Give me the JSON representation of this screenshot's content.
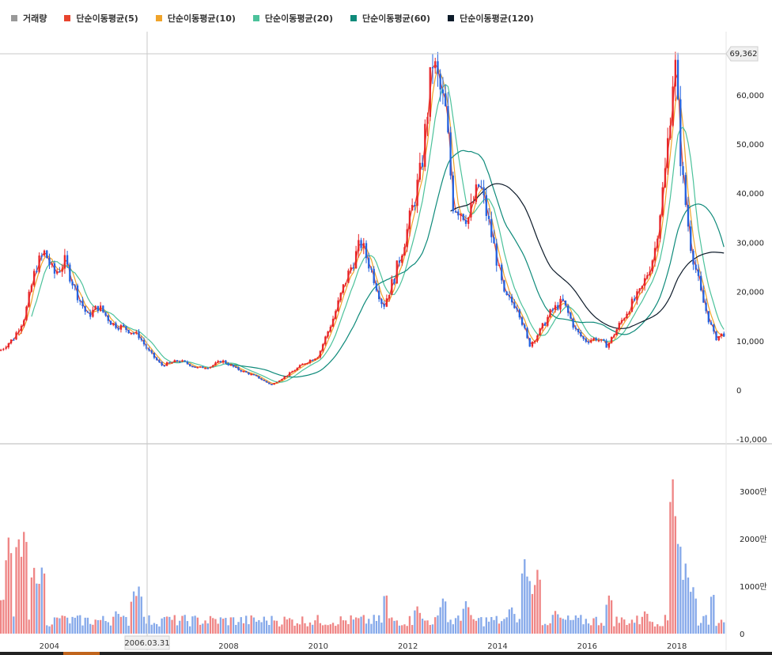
{
  "legend": [
    {
      "label": "거래량",
      "color": "#999999"
    },
    {
      "label": "단순이동평균(5)",
      "color": "#e8442e"
    },
    {
      "label": "단순이동평균(10)",
      "color": "#f0a42a"
    },
    {
      "label": "단순이동평균(20)",
      "color": "#4cc29b"
    },
    {
      "label": "단순이동평균(60)",
      "color": "#0e8a7a"
    },
    {
      "label": "단순이동평균(120)",
      "color": "#0d1b2a"
    }
  ],
  "crosshair": {
    "x_label": "2006.03.31",
    "y_label": "69,362"
  },
  "chart_data": {
    "type": "candlestick",
    "x": {
      "start": 2002.9,
      "end": 2019.1,
      "ticks": [
        "2004",
        "2006",
        "2008",
        "2010",
        "2012",
        "2014",
        "2016",
        "2018"
      ],
      "tick_values": [
        2004,
        2006,
        2008,
        2010,
        2012,
        2014,
        2016,
        2018
      ]
    },
    "price_axis": {
      "min": -10000,
      "max": 70000,
      "ticks": [
        -10000,
        0,
        10000,
        20000,
        30000,
        40000,
        50000,
        60000
      ],
      "tick_labels": [
        "-10,000",
        "0",
        "10,000",
        "20,000",
        "30,000",
        "40,000",
        "50,000",
        "60,000"
      ]
    },
    "volume_axis": {
      "min": 0,
      "max": 4000,
      "ticks": [
        0,
        1000,
        2000,
        3000
      ],
      "tick_labels": [
        "0",
        "1000만",
        "2000만",
        "3000만"
      ]
    },
    "up_color": "#e8262a",
    "down_color": "#2563e0",
    "vol_up_color": "#ef8585",
    "vol_down_color": "#86a9ea",
    "price_path": [
      [
        2002.9,
        8000
      ],
      [
        2003.2,
        10500
      ],
      [
        2003.45,
        15000
      ],
      [
        2003.7,
        25000
      ],
      [
        2003.9,
        28000
      ],
      [
        2004.1,
        23500
      ],
      [
        2004.35,
        26000
      ],
      [
        2004.6,
        20000
      ],
      [
        2004.85,
        15000
      ],
      [
        2005.1,
        17000
      ],
      [
        2005.4,
        13500
      ],
      [
        2005.7,
        12500
      ],
      [
        2006.0,
        11000
      ],
      [
        2006.2,
        8000
      ],
      [
        2006.5,
        5000
      ],
      [
        2006.9,
        6000
      ],
      [
        2007.3,
        4500
      ],
      [
        2007.6,
        4800
      ],
      [
        2007.85,
        6000
      ],
      [
        2008.2,
        4200
      ],
      [
        2008.6,
        2800
      ],
      [
        2008.95,
        1000
      ],
      [
        2009.3,
        3000
      ],
      [
        2009.7,
        5500
      ],
      [
        2010.0,
        7000
      ],
      [
        2010.35,
        15000
      ],
      [
        2010.6,
        22000
      ],
      [
        2010.95,
        30000
      ],
      [
        2011.2,
        24000
      ],
      [
        2011.45,
        17000
      ],
      [
        2011.7,
        23000
      ],
      [
        2012.0,
        33000
      ],
      [
        2012.3,
        45000
      ],
      [
        2012.55,
        67000
      ],
      [
        2012.85,
        56000
      ],
      [
        2013.0,
        38000
      ],
      [
        2013.35,
        35000
      ],
      [
        2013.6,
        42000
      ],
      [
        2013.9,
        30000
      ],
      [
        2014.15,
        19000
      ],
      [
        2014.45,
        17000
      ],
      [
        2014.7,
        9000
      ],
      [
        2014.95,
        12000
      ],
      [
        2015.2,
        16000
      ],
      [
        2015.45,
        18000
      ],
      [
        2015.75,
        12000
      ],
      [
        2015.95,
        10000
      ],
      [
        2016.2,
        10500
      ],
      [
        2016.45,
        9000
      ],
      [
        2016.7,
        13000
      ],
      [
        2016.95,
        17000
      ],
      [
        2017.2,
        20000
      ],
      [
        2017.5,
        28000
      ],
      [
        2017.75,
        45000
      ],
      [
        2017.95,
        68000
      ],
      [
        2018.1,
        45000
      ],
      [
        2018.3,
        30000
      ],
      [
        2018.55,
        19000
      ],
      [
        2018.85,
        10500
      ],
      [
        2019.05,
        11500
      ]
    ],
    "ma_lines": [
      {
        "name": "단순이동평균(5)",
        "color": "#e8442e",
        "lag": 0.08,
        "smooth": 2,
        "from": 2003.0
      },
      {
        "name": "단순이동평균(10)",
        "color": "#f0a42a",
        "lag": 0.17,
        "smooth": 4,
        "from": 2003.3
      },
      {
        "name": "단순이동평균(20)",
        "color": "#4cc29b",
        "lag": 0.35,
        "smooth": 8,
        "from": 2003.6
      },
      {
        "name": "단순이동평균(60)",
        "color": "#0e8a7a",
        "lag": 1.1,
        "smooth": 22,
        "from": 2007.9
      },
      {
        "name": "단순이동평균(120)",
        "color": "#0d1b2a",
        "lag": 2.2,
        "smooth": 40,
        "from": 2012.9
      }
    ],
    "volume_spikes": [
      [
        2002.95,
        800
      ],
      [
        2003.1,
        2100
      ],
      [
        2003.3,
        2150
      ],
      [
        2003.45,
        2300
      ],
      [
        2003.65,
        1450
      ],
      [
        2003.85,
        1500
      ],
      [
        2004.3,
        400
      ],
      [
        2005.5,
        500
      ],
      [
        2005.9,
        950
      ],
      [
        2006.0,
        1000
      ],
      [
        2006.6,
        400
      ],
      [
        2009.0,
        300
      ],
      [
        2011.5,
        900
      ],
      [
        2012.2,
        600
      ],
      [
        2012.8,
        800
      ],
      [
        2013.3,
        700
      ],
      [
        2014.3,
        600
      ],
      [
        2014.6,
        1600
      ],
      [
        2014.7,
        1200
      ],
      [
        2014.9,
        1400
      ],
      [
        2015.3,
        500
      ],
      [
        2016.5,
        850
      ],
      [
        2017.3,
        500
      ],
      [
        2017.9,
        3400
      ],
      [
        2018.05,
        2100
      ],
      [
        2018.2,
        1500
      ],
      [
        2018.35,
        1050
      ],
      [
        2018.6,
        300
      ],
      [
        2018.8,
        900
      ],
      [
        2019.0,
        300
      ]
    ]
  }
}
